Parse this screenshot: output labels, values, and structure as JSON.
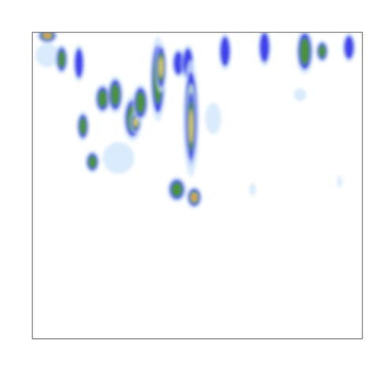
{
  "chart_data": {
    "type": "heatmap",
    "colors": [
      "#cfe6fb",
      "#3030e8",
      "#4f9a2a",
      "#e8d070",
      "#e05050"
    ],
    "frame": true
  }
}
